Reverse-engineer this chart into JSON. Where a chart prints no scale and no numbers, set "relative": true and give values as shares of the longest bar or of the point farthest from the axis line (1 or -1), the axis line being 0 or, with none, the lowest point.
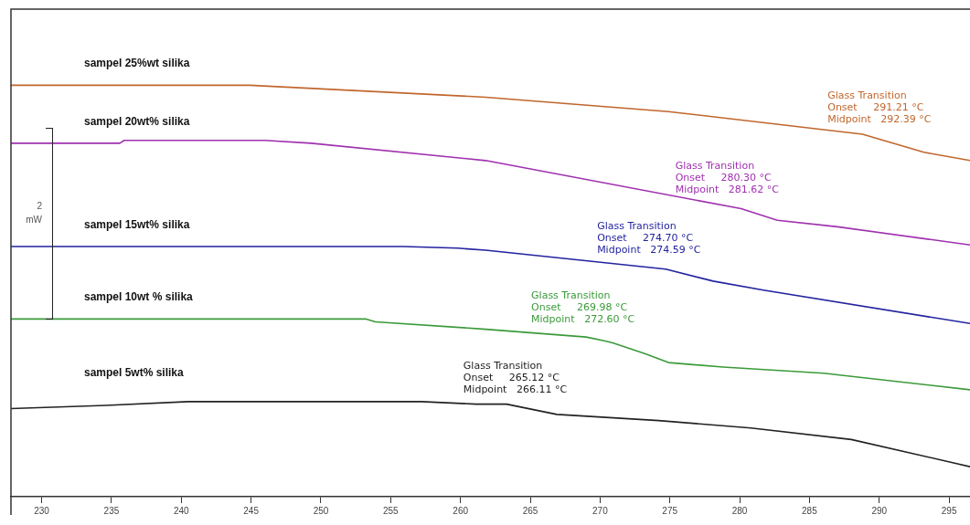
{
  "chart_data": {
    "type": "line",
    "relative": true,
    "xlim": [
      227.8,
      296.5
    ],
    "xticks": [
      230,
      235,
      240,
      245,
      250,
      255,
      260,
      265,
      270,
      275,
      280,
      285,
      290,
      295
    ],
    "series": [
      {
        "name": "sampel 25%wt silika",
        "color": "#c0662c",
        "x": [
          227.8,
          244.9,
          261.8,
          274.9,
          288.8,
          293.2,
          296.5
        ],
        "values": [
          1.0,
          1.0,
          0.971,
          0.936,
          0.881,
          0.837,
          0.817
        ]
      },
      {
        "name": "sampel 20wt% silika",
        "color": "#a030b0",
        "x": [
          227.8,
          235.6,
          235.9,
          246.0,
          249.3,
          261.8,
          280.1,
          282.7,
          287.0,
          296.5
        ],
        "values": [
          0.859,
          0.859,
          0.866,
          0.866,
          0.859,
          0.817,
          0.7,
          0.672,
          0.656,
          0.612
        ]
      },
      {
        "name": "sampel 15wt% silika",
        "color": "#2323a0",
        "x": [
          227.8,
          255.9,
          259.8,
          261.8,
          274.7,
          278.1,
          281.7,
          296.5
        ],
        "values": [
          0.608,
          0.608,
          0.604,
          0.599,
          0.553,
          0.524,
          0.502,
          0.421
        ]
      },
      {
        "name": "sampel 10wt % silika",
        "color": "#3a9a3a",
        "x": [
          227.8,
          253.2,
          253.9,
          261.8,
          269.0,
          270.3,
          270.9,
          273.2,
          274.9,
          278.8,
          286.0,
          296.5
        ],
        "values": [
          0.432,
          0.432,
          0.425,
          0.407,
          0.388,
          0.379,
          0.374,
          0.348,
          0.326,
          0.315,
          0.3,
          0.26
        ]
      },
      {
        "name": "sampel 5wt% silika",
        "color": "#222222",
        "x": [
          227.8,
          234.6,
          240.5,
          257.2,
          261.1,
          263.3,
          266.9,
          274.2,
          280.8,
          288.0,
          296.5
        ],
        "values": [
          0.214,
          0.222,
          0.231,
          0.231,
          0.225,
          0.225,
          0.2,
          0.185,
          0.167,
          0.139,
          0.073
        ]
      }
    ],
    "annotations": [
      {
        "text": "Glass Transition\nOnset     291.21 °C\nMidpoint   292.39 °C",
        "x": 291.21,
        "y": 0.87
      },
      {
        "text": "Glass Transition\nOnset     280.30 °C\nMidpoint   281.62 °C",
        "x": 280.3,
        "y": 0.7
      },
      {
        "text": "Glass Transition\nOnset     274.70 °C\nMidpoint   274.59 °C",
        "x": 274.7,
        "y": 0.553
      },
      {
        "text": "Glass Transition\nOnset     269.98 °C\nMidpoint   272.60 °C",
        "x": 269.98,
        "y": 0.385
      },
      {
        "text": "Glass Transition\nOnset     265.12 °C\nMidpoint   266.11 °C",
        "x": 265.12,
        "y": 0.213
      },
      "2 mW"
    ]
  }
}
